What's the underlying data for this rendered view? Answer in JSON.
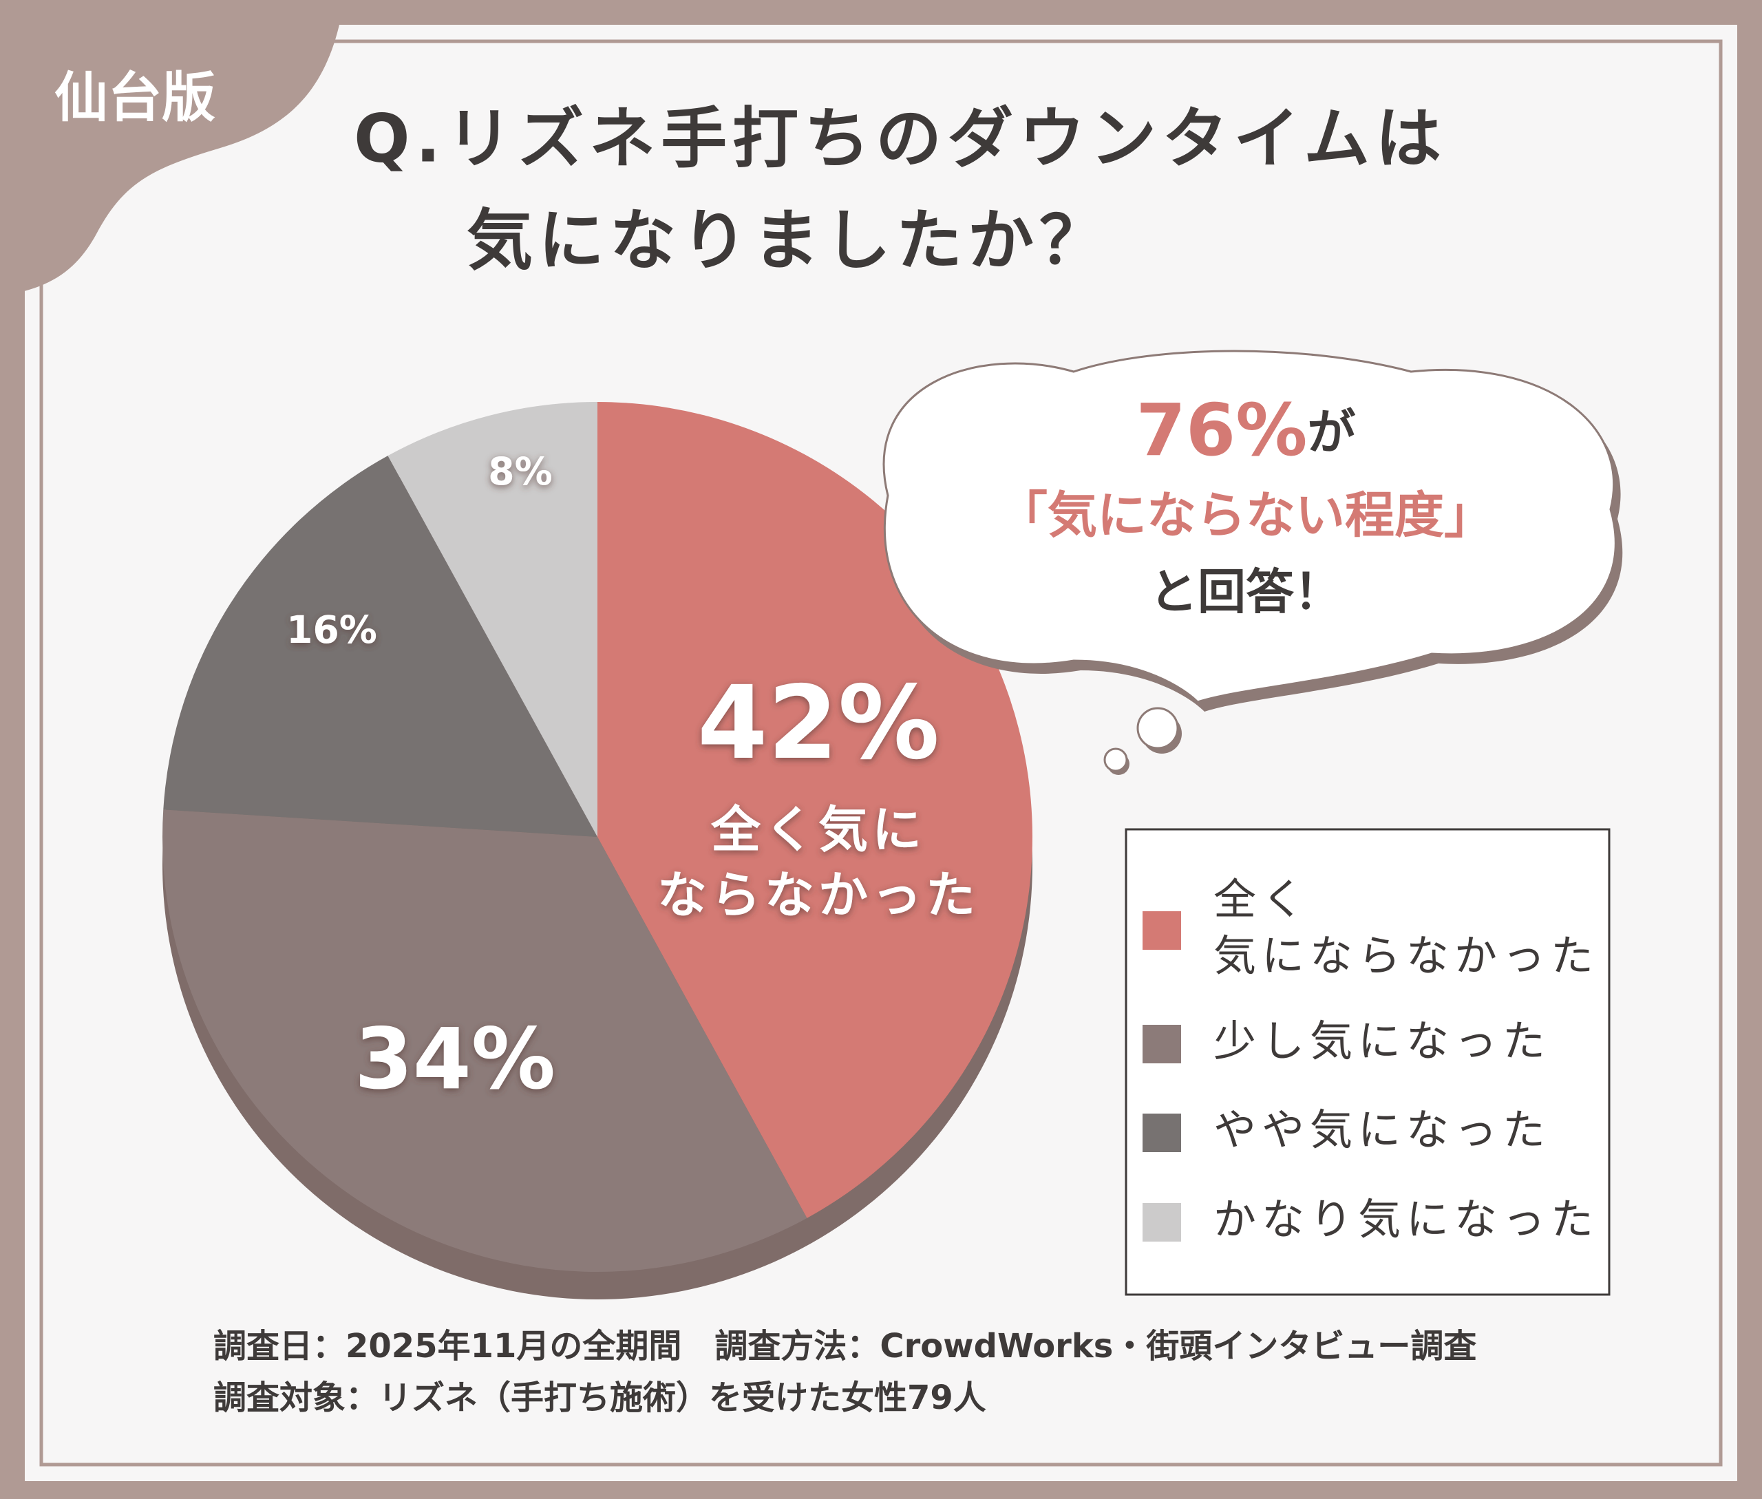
{
  "badge": "仙台版",
  "chart_data": {
    "type": "pie",
    "title": [
      "Q.リズネ手打ちのダウンタイムは",
      "気になりましたか？"
    ],
    "categories": [
      [
        "全く",
        "気にならなかった"
      ],
      [
        "少し気になった"
      ],
      [
        "やや気になった"
      ],
      [
        "かなり気になった"
      ]
    ],
    "values": [
      42,
      34,
      16,
      8
    ],
    "value_labels": [
      "42%",
      "34%",
      "16%",
      "8%"
    ],
    "colors": [
      "#d47a74",
      "#8c7b79",
      "#777271",
      "#cccbcb"
    ],
    "slice_annotation": [
      "全く気に",
      "ならなかった"
    ],
    "callout": [
      [
        "76%",
        "が"
      ],
      [
        "「気にならない程度」"
      ],
      [
        "と回答！"
      ]
    ],
    "legend": "right"
  },
  "footnotes": [
    "調査日：2025年11月の全期間　調査方法：CrowdWorks・街頭インタビュー調査",
    "調査対象：リズネ（手打ち施術）を受けた女性79人"
  ]
}
